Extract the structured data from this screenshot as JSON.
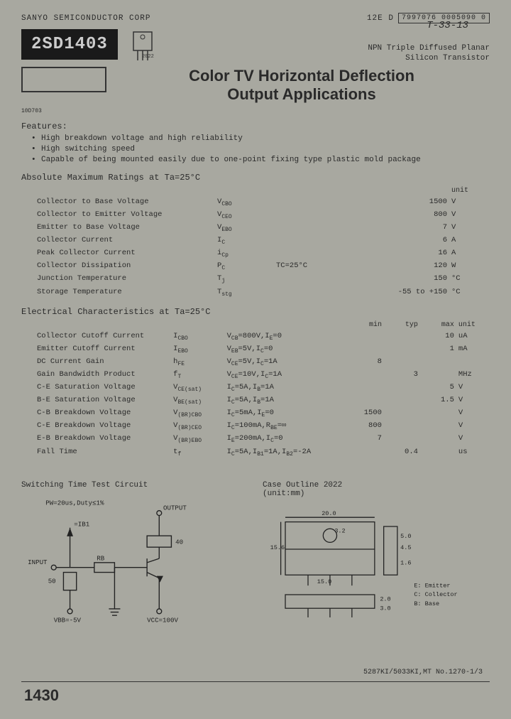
{
  "header": {
    "company": "SANYO SEMICONDUCTOR CORP",
    "code1": "12E D",
    "code2": "7997076 0005090 0",
    "handwritten": "T-33-13"
  },
  "part": {
    "number": "2SD1403",
    "pkg_code": "2022",
    "type_line1": "NPN Triple Diffused Planar",
    "type_line2": "Silicon Transistor"
  },
  "title": {
    "line1": "Color TV Horizontal Deflection",
    "line2": "Output Applications"
  },
  "tiny_label": "10D703",
  "features": {
    "heading": "Features:",
    "items": [
      "High breakdown voltage and high reliability",
      "High switching speed",
      "Capable of being mounted easily due to one-point fixing type plastic mold package"
    ]
  },
  "ratings": {
    "heading": "Absolute Maximum Ratings at Ta=25°C",
    "unit_hdr": "unit",
    "rows": [
      {
        "param": "Collector to Base Voltage",
        "sym": "V<sub>CBO</sub>",
        "cond": "",
        "val": "1500",
        "unit": "V"
      },
      {
        "param": "Collector to Emitter Voltage",
        "sym": "V<sub>CEO</sub>",
        "cond": "",
        "val": "800",
        "unit": "V"
      },
      {
        "param": "Emitter to Base Voltage",
        "sym": "V<sub>EBO</sub>",
        "cond": "",
        "val": "7",
        "unit": "V"
      },
      {
        "param": "Collector Current",
        "sym": "I<sub>C</sub>",
        "cond": "",
        "val": "6",
        "unit": "A"
      },
      {
        "param": "Peak Collector Current",
        "sym": "i<sub>Cp</sub>",
        "cond": "",
        "val": "16",
        "unit": "A"
      },
      {
        "param": "Collector Dissipation",
        "sym": "P<sub>C</sub>",
        "cond": "TC=25°C",
        "val": "120",
        "unit": "W"
      },
      {
        "param": "Junction Temperature",
        "sym": "T<sub>j</sub>",
        "cond": "",
        "val": "150",
        "unit": "°C"
      },
      {
        "param": "Storage Temperature",
        "sym": "T<sub>stg</sub>",
        "cond": "",
        "val": "-55 to +150",
        "unit": "°C"
      }
    ]
  },
  "elec": {
    "heading": "Electrical Characteristics at Ta=25°C",
    "hdr": {
      "min": "min",
      "typ": "typ",
      "max": "max",
      "unit": "unit"
    },
    "rows": [
      {
        "param": "Collector Cutoff Current",
        "sym": "I<sub>CBO</sub>",
        "cond": "V<sub>CB</sub>=800V,I<sub>E</sub>=0",
        "min": "",
        "typ": "",
        "max": "10",
        "unit": "uA"
      },
      {
        "param": "Emitter Cutoff Current",
        "sym": "I<sub>EBO</sub>",
        "cond": "V<sub>EB</sub>=5V,I<sub>C</sub>=0",
        "min": "",
        "typ": "",
        "max": "1",
        "unit": "mA"
      },
      {
        "param": "DC Current Gain",
        "sym": "h<sub>FE</sub>",
        "cond": "V<sub>CE</sub>=5V,I<sub>C</sub>=1A",
        "min": "8",
        "typ": "",
        "max": "",
        "unit": ""
      },
      {
        "param": "Gain Bandwidth Product",
        "sym": "f<sub>T</sub>",
        "cond": "V<sub>CE</sub>=10V,I<sub>C</sub>=1A",
        "min": "",
        "typ": "3",
        "max": "",
        "unit": "MHz"
      },
      {
        "param": "C-E Saturation Voltage",
        "sym": "V<sub>CE(sat)</sub>",
        "cond": "I<sub>C</sub>=5A,I<sub>B</sub>=1A",
        "min": "",
        "typ": "",
        "max": "5",
        "unit": "V"
      },
      {
        "param": "B-E Saturation Voltage",
        "sym": "V<sub>BE(sat)</sub>",
        "cond": "I<sub>C</sub>=5A,I<sub>B</sub>=1A",
        "min": "",
        "typ": "",
        "max": "1.5",
        "unit": "V"
      },
      {
        "param": "C-B Breakdown Voltage",
        "sym": "V<sub>(BR)CBO</sub>",
        "cond": "I<sub>C</sub>=5mA,I<sub>E</sub>=0",
        "min": "1500",
        "typ": "",
        "max": "",
        "unit": "V"
      },
      {
        "param": "C-E Breakdown Voltage",
        "sym": "V<sub>(BR)CEO</sub>",
        "cond": "I<sub>C</sub>=100mA,R<sub>BE</sub>=∞",
        "min": "800",
        "typ": "",
        "max": "",
        "unit": "V"
      },
      {
        "param": "E-B Breakdown Voltage",
        "sym": "V<sub>(BR)EBO</sub>",
        "cond": "I<sub>E</sub>=200mA,I<sub>C</sub>=0",
        "min": "7",
        "typ": "",
        "max": "",
        "unit": "V"
      },
      {
        "param": "Fall Time",
        "sym": "t<sub>f</sub>",
        "cond": "I<sub>C</sub>=5A,I<sub>B1</sub>=1A,I<sub>B2</sub>=-2A",
        "min": "",
        "typ": "0.4",
        "max": "",
        "unit": "us"
      }
    ]
  },
  "diagrams": {
    "circuit_title": "Switching Time Test Circuit",
    "outline_title": "Case Outline  2022",
    "outline_unit": "(unit:mm)",
    "circuit_labels": {
      "pw": "PW=20us,Duty≤1%",
      "input": "INPUT",
      "output": "OUTPUT",
      "rb": "RB",
      "iB1": "=IB1",
      "fifty": "50",
      "vbb": "VBB=-5V",
      "vcc": "VCC=100V",
      "fortyd": "40"
    },
    "outline_labels": {
      "w": "20.0",
      "h": "15.6",
      "hole": "3.2",
      "body": "15.0",
      "pin_e": "E: Emitter",
      "pin_c": "C: Collector",
      "pin_b": "B: Base",
      "d1": "5.0",
      "d2": "4.5",
      "d3": "2.0",
      "d4": "1.6",
      "d5": "3.0"
    }
  },
  "footer": {
    "code": "5287KI/5033KI,MT No.1270-1/3",
    "page": "1430"
  }
}
